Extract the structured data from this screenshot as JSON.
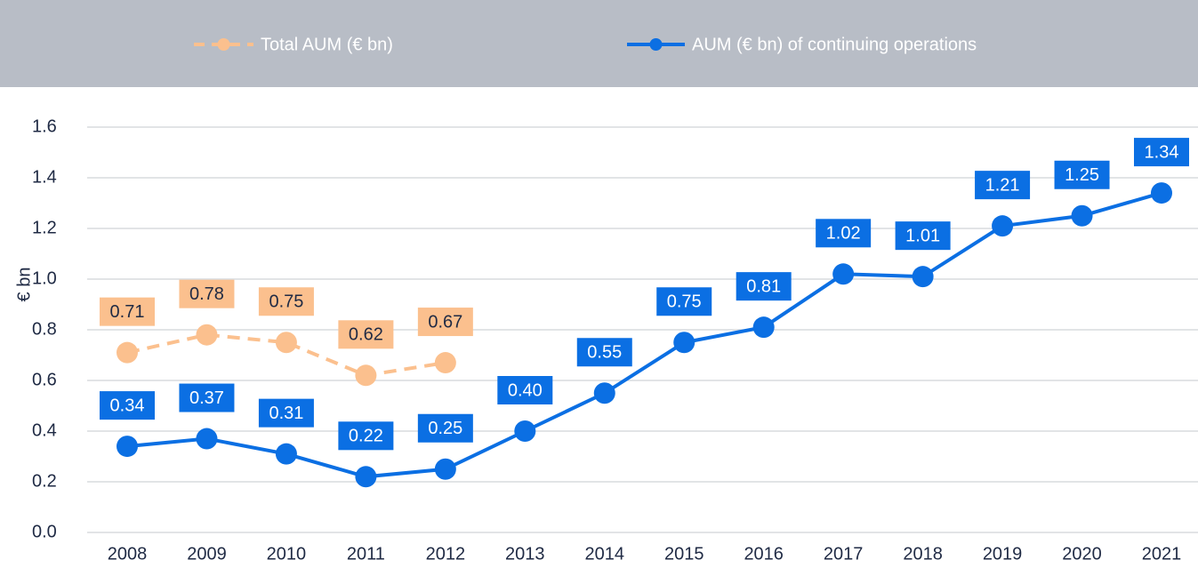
{
  "chart_data": {
    "type": "line",
    "y_label": "€ bn",
    "categories": [
      "2008",
      "2009",
      "2010",
      "2011",
      "2012",
      "2013",
      "2014",
      "2015",
      "2016",
      "2017",
      "2018",
      "2019",
      "2020",
      "2021"
    ],
    "series": [
      {
        "name": "Total AUM (€ bn)",
        "color": "#fbc08e",
        "dashed": true,
        "values": [
          0.71,
          0.78,
          0.75,
          0.62,
          0.67,
          null,
          null,
          null,
          null,
          null,
          null,
          null,
          null,
          null
        ],
        "value_labels": [
          "0.71",
          "0.78",
          "0.75",
          "0.62",
          "0.67",
          null,
          null,
          null,
          null,
          null,
          null,
          null,
          null,
          null
        ]
      },
      {
        "name": "AUM (€ bn) of continuing operations",
        "color": "#0b6fe3",
        "dashed": false,
        "values": [
          0.34,
          0.37,
          0.31,
          0.22,
          0.25,
          0.4,
          0.55,
          0.75,
          0.81,
          1.02,
          1.01,
          1.21,
          1.25,
          1.34
        ],
        "value_labels": [
          "0.34",
          "0.37",
          "0.31",
          "0.22",
          "0.25",
          "0.40",
          "0.55",
          "0.75",
          "0.81",
          "1.02",
          "1.01",
          "1.21",
          "1.25",
          "1.34"
        ]
      }
    ],
    "ylim": [
      0,
      1.6
    ],
    "yticks": [
      {
        "value": 0,
        "label": "0.0"
      },
      0.2,
      0.4,
      0.6,
      0.8,
      {
        "value": 1,
        "label": "1.0"
      },
      1.2,
      1.4,
      1.6
    ],
    "grid": true,
    "legend": "top"
  }
}
